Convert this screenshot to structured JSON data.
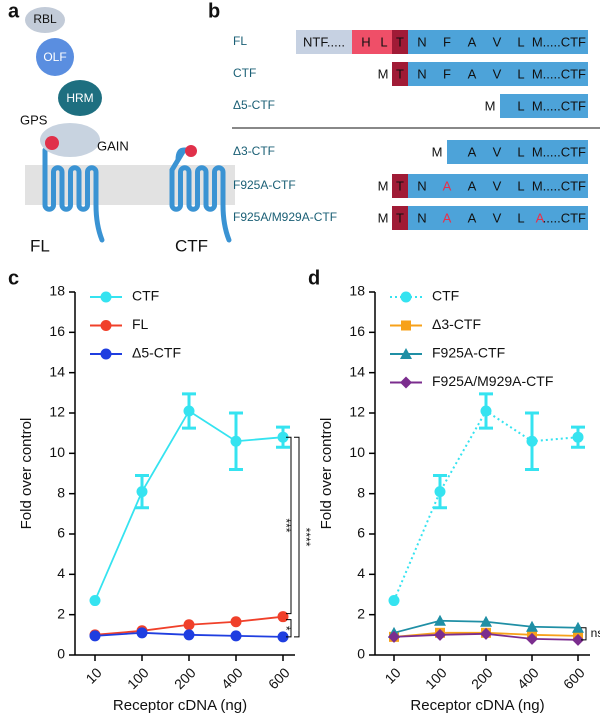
{
  "diagram": {
    "panel_label": "a",
    "labels": [
      "RBL",
      "OLF",
      "HRM",
      "GPS",
      "GAIN",
      "FL",
      "CTF"
    ]
  },
  "sequences": {
    "panel_label": "b",
    "rows": [
      {
        "label": "FL",
        "residues": [
          "NTF.....",
          "H",
          "L",
          "T",
          "N",
          "F",
          "A",
          "V",
          "L",
          "M.....CTF"
        ]
      },
      {
        "label": "CTF",
        "residues": [
          "M",
          "T",
          "N",
          "F",
          "A",
          "V",
          "L",
          "M.....CTF"
        ]
      },
      {
        "label": "Δ5-CTF",
        "residues": [
          "M",
          "L",
          "M.....CTF"
        ]
      },
      {
        "label": "Δ3-CTF",
        "residues": [
          "M",
          "A",
          "V",
          "L",
          "M.....CTF"
        ]
      },
      {
        "label": "F925A-CTF",
        "residues": [
          "M",
          "T",
          "N",
          "A",
          "A",
          "V",
          "L",
          "M.....CTF"
        ]
      },
      {
        "label": "F925A/M929A-CTF",
        "residues": [
          "M",
          "T",
          "N",
          "A",
          "A",
          "V",
          "L",
          "A",
          ".....CTF"
        ]
      }
    ]
  },
  "chart_data": [
    {
      "type": "line",
      "panel_label": "c",
      "xlabel": "Receptor cDNA (ng)",
      "ylabel": "Fold over control",
      "categories": [
        "10",
        "100",
        "200",
        "400",
        "600"
      ],
      "ylim": [
        0,
        18
      ],
      "yticks": [
        0,
        2,
        4,
        6,
        8,
        10,
        12,
        14,
        16,
        18
      ],
      "series": [
        {
          "name": "CTF",
          "color": "#35e3f0",
          "marker": "circle",
          "values": [
            2.7,
            8.1,
            12.1,
            10.6,
            10.8
          ],
          "errors": [
            0,
            0.8,
            0.85,
            1.4,
            0.5
          ]
        },
        {
          "name": "FL",
          "color": "#f0402a",
          "marker": "circle",
          "values": [
            1.0,
            1.2,
            1.5,
            1.65,
            1.9
          ]
        },
        {
          "name": "Δ5-CTF",
          "color": "#1f3ee0",
          "marker": "circle",
          "values": [
            0.95,
            1.1,
            1.0,
            0.95,
            0.9
          ]
        }
      ],
      "annotations": [
        "***",
        "****",
        "*"
      ]
    },
    {
      "type": "line",
      "panel_label": "d",
      "xlabel": "Receptor cDNA (ng)",
      "ylabel": "Fold over control",
      "categories": [
        "10",
        "100",
        "200",
        "400",
        "600"
      ],
      "ylim": [
        0,
        18
      ],
      "yticks": [
        0,
        2,
        4,
        6,
        8,
        10,
        12,
        14,
        16,
        18
      ],
      "series": [
        {
          "name": "CTF",
          "color": "#35e3f0",
          "marker": "circle",
          "dash": "dotted",
          "values": [
            2.7,
            8.1,
            12.1,
            10.6,
            10.8
          ],
          "errors": [
            0,
            0.8,
            0.85,
            1.4,
            0.5
          ]
        },
        {
          "name": "Δ3-CTF",
          "color": "#f7a11a",
          "marker": "square",
          "values": [
            0.9,
            1.1,
            1.1,
            1.0,
            0.95
          ]
        },
        {
          "name": "F925A-CTF",
          "color": "#1f8fa5",
          "marker": "triangle",
          "values": [
            1.1,
            1.7,
            1.65,
            1.4,
            1.35
          ]
        },
        {
          "name": "F925A/M929A-CTF",
          "color": "#7b2d8e",
          "marker": "diamond",
          "values": [
            0.9,
            1.0,
            1.05,
            0.8,
            0.75
          ]
        }
      ],
      "annotations": [
        "ns"
      ]
    }
  ]
}
